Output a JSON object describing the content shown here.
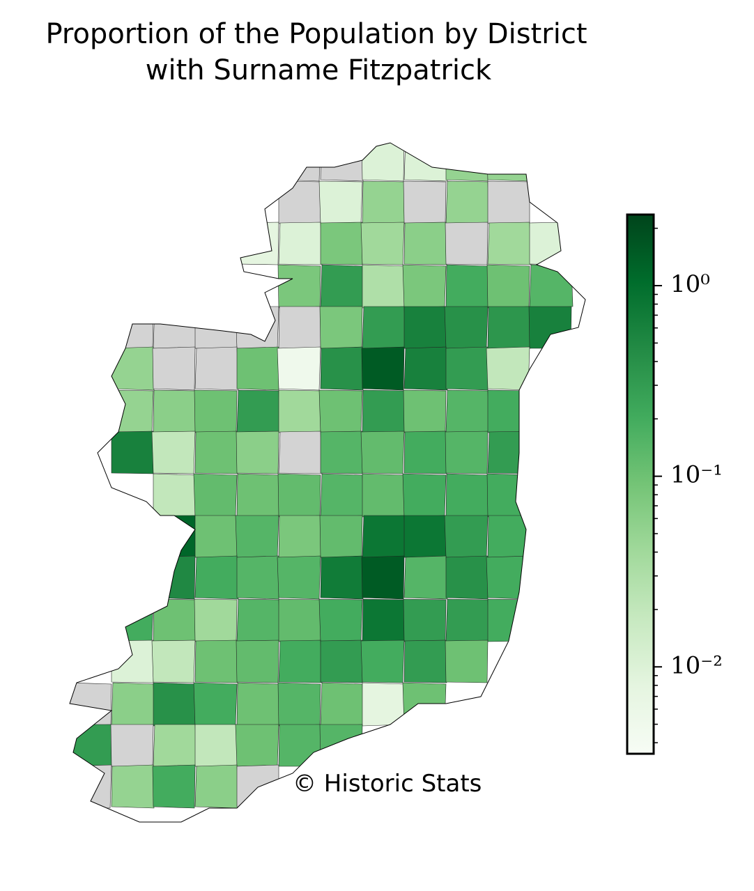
{
  "chart_data": {
    "type": "choropleth",
    "title": [
      "Proportion of the Population by District",
      "with Surname Fitzpatrick"
    ],
    "annotation": "© Historic Stats",
    "log_scale": true,
    "colormap": [
      "#f7fcf5",
      "#e5f5e0",
      "#c7e9c0",
      "#a1d99b",
      "#74c476",
      "#41ab5d",
      "#238b45",
      "#006d2c",
      "#00441b"
    ],
    "missing_color": "#d3d3d3",
    "clim": [
      0.0035,
      2.36
    ],
    "cticks": [
      {
        "value": 1,
        "label": "10⁰"
      },
      {
        "value": 0.1,
        "label": "10⁻¹"
      },
      {
        "value": 0.01,
        "label": "10⁻²"
      }
    ],
    "minor_cticks": [
      2,
      0.9,
      0.8,
      0.7,
      0.6,
      0.5,
      0.4,
      0.3,
      0.2,
      0.09,
      0.08,
      0.07,
      0.06,
      0.05,
      0.04,
      0.03,
      0.02,
      0.009,
      0.008,
      0.007,
      0.006,
      0.005,
      0.004
    ],
    "values": [
      null,
      null,
      0.01,
      0.01,
      0.05,
      0.05,
      null,
      0.01,
      0.05,
      null,
      0.05,
      null,
      0.008,
      0.01,
      0.08,
      0.04,
      0.06,
      null,
      0.04,
      0.01,
      0.08,
      0.3,
      0.03,
      0.08,
      0.2,
      0.1,
      0.15,
      null,
      null,
      null,
      null,
      null,
      0.08,
      0.3,
      0.6,
      0.4,
      0.35,
      0.6,
      0.05,
      null,
      null,
      0.1,
      0.005,
      0.4,
      1.5,
      0.6,
      0.3,
      0.02,
      0.05,
      0.06,
      0.1,
      0.3,
      0.04,
      0.1,
      0.3,
      0.1,
      0.15,
      0.2,
      0.6,
      0.02,
      0.1,
      0.06,
      null,
      0.15,
      0.12,
      0.2,
      0.15,
      0.3,
      0.02,
      0.12,
      0.1,
      0.12,
      0.15,
      0.12,
      0.2,
      0.2,
      0.2,
      1.2,
      0.1,
      0.15,
      0.08,
      0.12,
      0.8,
      0.8,
      0.3,
      0.2,
      0.5,
      0.2,
      0.15,
      0.15,
      0.7,
      1.5,
      0.15,
      0.4,
      0.2,
      0.2,
      0.1,
      0.04,
      0.15,
      0.12,
      0.2,
      0.8,
      0.3,
      0.3,
      0.2,
      0.01,
      0.02,
      0.1,
      0.12,
      0.2,
      0.3,
      0.2,
      0.3,
      0.1,
      null,
      0.06,
      0.4,
      0.2,
      0.1,
      0.15,
      0.1,
      0.008,
      0.1,
      0.3,
      null,
      0.04,
      0.02,
      0.1,
      0.15,
      0.15,
      null,
      0.05,
      0.2,
      0.06,
      null
    ]
  }
}
